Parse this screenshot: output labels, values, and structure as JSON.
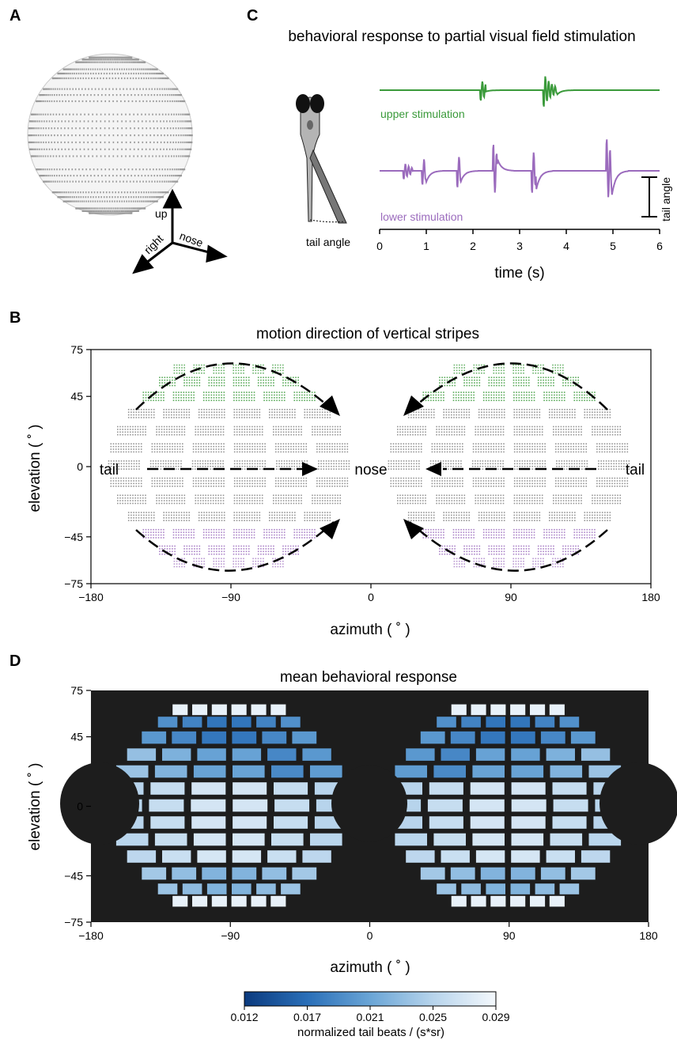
{
  "panels": {
    "A": {
      "letter": "A",
      "axes_labels": {
        "up": "up",
        "right": "right",
        "nose": "nose"
      }
    },
    "C": {
      "letter": "C",
      "title": "behavioral response to partial visual field stimulation",
      "fish_label": "tail angle",
      "scalebar_label": "tail angle",
      "upper_label": "upper stimulation",
      "lower_label": "lower stimulation",
      "upper_color": "#3a9a3a",
      "lower_color": "#9b6bbd",
      "xlabel": "time (s)",
      "xticks": [
        "0",
        "1",
        "2",
        "3",
        "4",
        "5",
        "6"
      ]
    },
    "B": {
      "letter": "B",
      "title": "motion direction of vertical stripes",
      "xlabel": "azimuth ( ˚ )",
      "ylabel": "elevation ( ˚ )",
      "xticks": [
        "−180",
        "−90",
        "0",
        "90",
        "180"
      ],
      "yticks": [
        "75",
        "45",
        "0",
        "−45",
        "−75"
      ],
      "tail_left": "tail",
      "nose": "nose",
      "tail_right": "tail",
      "upper_color": "#3a9a3a",
      "lower_color": "#9b6bbd",
      "mid_color": "#8a8a8a"
    },
    "D": {
      "letter": "D",
      "title": "mean behavioral response",
      "xlabel": "azimuth ( ˚ )",
      "ylabel": "elevation ( ˚ )",
      "xticks": [
        "−180",
        "−90",
        "0",
        "90",
        "180"
      ],
      "yticks": [
        "75",
        "45",
        "0",
        "−45",
        "−75"
      ],
      "colorbar_ticks": [
        "0.012",
        "0.017",
        "0.021",
        "0.025",
        "0.029"
      ],
      "colorbar_label": "normalized tail beats / (s*sr)"
    }
  },
  "chart_data": [
    {
      "type": "line",
      "panel": "C",
      "title": "behavioral response to partial visual field stimulation",
      "xlabel": "time (s)",
      "ylabel": "tail angle",
      "xlim": [
        0,
        6
      ],
      "series": [
        {
          "name": "upper stimulation",
          "bouts_at_s": [
            2.15,
            3.55
          ]
        },
        {
          "name": "lower stimulation",
          "bouts_at_s": [
            0.5,
            0.9,
            1.65,
            2.4,
            3.25,
            3.25,
            4.85
          ]
        }
      ]
    },
    {
      "type": "scatter",
      "panel": "B",
      "title": "motion direction of vertical stripes",
      "xlabel": "azimuth ( ˚ )",
      "ylabel": "elevation ( ˚ )",
      "xlim": [
        -180,
        180
      ],
      "ylim": [
        -75,
        75
      ],
      "annotations": [
        "tail",
        "nose",
        "tail"
      ]
    },
    {
      "type": "heatmap",
      "panel": "D",
      "title": "mean behavioral response",
      "xlabel": "azimuth ( ˚ )",
      "ylabel": "elevation ( ˚ )",
      "xlim": [
        -180,
        180
      ],
      "ylim": [
        -75,
        75
      ],
      "colorbar": {
        "min": 0.012,
        "max": 0.029,
        "label": "normalized tail beats / (s*sr)"
      }
    }
  ]
}
